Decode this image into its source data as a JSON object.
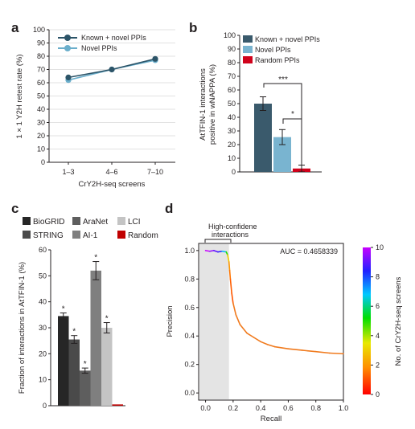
{
  "panel_labels": [
    "a",
    "b",
    "c",
    "d"
  ],
  "colors": {
    "a_known": "#2c5468",
    "a_novel": "#6aaecb",
    "b_known": "#3a5a6c",
    "b_novel": "#79b4d0",
    "b_random": "#d0021b",
    "c_biogrid": "#262626",
    "c_string": "#4a4a4a",
    "c_aranet": "#5e5e5e",
    "c_ai1": "#7f7f7f",
    "c_lci": "#c4c4c4",
    "c_random": "#c00000",
    "d_curve": "#f07a1d",
    "d_shade": "#e4e4e4"
  },
  "chart_data": [
    {
      "panel": "a",
      "type": "line",
      "categories": [
        "1–3",
        "4–6",
        "7–10"
      ],
      "xlabel": "CrY2H-seq screens",
      "ylabel": "1 × 1 Y2H retest rate (%)",
      "ylim": [
        0,
        100
      ],
      "yticks": [
        0,
        10,
        20,
        30,
        40,
        50,
        60,
        70,
        80,
        90,
        100
      ],
      "legend": "top-left",
      "series": [
        {
          "name": "Known + novel PPIs",
          "values": [
            64,
            70,
            78
          ]
        },
        {
          "name": "Novel PPIs",
          "values": [
            62,
            70,
            77
          ]
        }
      ]
    },
    {
      "panel": "b",
      "type": "bar",
      "categories": [
        "Known + novel PPIs",
        "Novel PPIs",
        "Random PPIs"
      ],
      "values": [
        50,
        25.5,
        2.5
      ],
      "errors": [
        5,
        5.5,
        2.5
      ],
      "ylabel": "AtTFIN-1 interactions positive in wNAPPA (%)",
      "ylim": [
        0,
        100
      ],
      "yticks": [
        0,
        10,
        20,
        30,
        40,
        50,
        60,
        70,
        80,
        90,
        100
      ],
      "legend": "top-left",
      "annotations": [
        "***",
        "*"
      ]
    },
    {
      "panel": "c",
      "type": "bar",
      "categories": [
        "BioGRID",
        "STRING",
        "AraNet",
        "AI-1",
        "LCI",
        "Random"
      ],
      "values": [
        34.5,
        25.5,
        13.5,
        52,
        30,
        0.5
      ],
      "errors": [
        1.2,
        1.5,
        1,
        3.5,
        2,
        0.2
      ],
      "significant": [
        true,
        true,
        true,
        true,
        true,
        false
      ],
      "ylabel": "Fraction of interactions in AtTFIN-1 (%)",
      "ylim": [
        0,
        60
      ],
      "yticks": [
        0,
        10,
        20,
        30,
        40,
        50,
        60
      ],
      "legend": "top"
    },
    {
      "panel": "d",
      "type": "line",
      "xlabel": "Recall",
      "ylabel": "Precision",
      "xlim": [
        -0.05,
        1.0
      ],
      "ylim": [
        -0.05,
        1.05
      ],
      "xticks": [
        0.0,
        0.2,
        0.4,
        0.6,
        0.8,
        1.0
      ],
      "yticks": [
        0.0,
        0.2,
        0.4,
        0.6,
        0.8,
        1.0
      ],
      "auc_text": "AUC = 0.4658339",
      "highlight_label": [
        "High-confidene",
        "interactions"
      ],
      "highlight_range": [
        0.0,
        0.17
      ],
      "colorbar": {
        "label": "No. of CrY2H-seq screens",
        "range": [
          0,
          10
        ],
        "ticks": [
          0,
          2,
          4,
          6,
          8,
          10
        ]
      },
      "x": [
        0.0,
        0.03,
        0.06,
        0.09,
        0.12,
        0.15,
        0.16,
        0.17,
        0.175,
        0.18,
        0.19,
        0.2,
        0.22,
        0.25,
        0.3,
        0.35,
        0.4,
        0.45,
        0.5,
        0.6,
        0.7,
        0.8,
        0.9,
        1.0
      ],
      "y": [
        1.0,
        0.995,
        1.0,
        0.99,
        0.995,
        0.99,
        0.97,
        0.92,
        0.86,
        0.8,
        0.7,
        0.63,
        0.55,
        0.48,
        0.42,
        0.39,
        0.36,
        0.34,
        0.325,
        0.31,
        0.3,
        0.29,
        0.28,
        0.275
      ],
      "screens": [
        10,
        9.5,
        9,
        8.5,
        7,
        5,
        3,
        2,
        1.5,
        1.2,
        1.1,
        1,
        1,
        1,
        1,
        1,
        1,
        1,
        1,
        1,
        1,
        1,
        1,
        1
      ]
    }
  ]
}
